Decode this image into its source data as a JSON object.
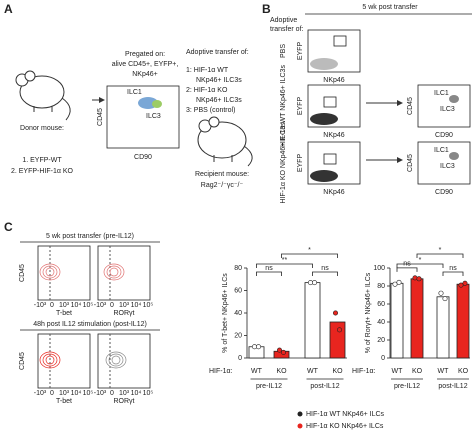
{
  "panel_a": {
    "letter": "A",
    "donor_label": "Donor mouse:",
    "donor_items": [
      "1. EYFP-WT",
      "2. EYFP-HIF-1α KO"
    ],
    "gate_text": [
      "Pregated on:",
      "alive CD45+, EYFP+,",
      "NKp46+"
    ],
    "plot": {
      "y_label": "CD45",
      "x_label": "CD90",
      "gates": [
        "ILC1",
        "ILC3"
      ]
    },
    "transfer_title": "Adoptive transfer of:",
    "transfer_items": [
      "1:  HIF-1α WT",
      "NKp46+ ILC3s",
      "2:  HIF-1α KO",
      "NKp46+ ILC3s",
      "3:  PBS (control)"
    ],
    "recipient": [
      "Recipient mouse:",
      "Rag2⁻/⁻γc⁻/⁻"
    ]
  },
  "panel_b": {
    "letter": "B",
    "header": "5 wk  post transfer",
    "side_title": [
      "Adoptive",
      "transfer of:"
    ],
    "rows": [
      "PBS",
      "HIF-1α WT NKp46+ ILC3s",
      "HIF-1α KO NKp46+ ILC3s"
    ],
    "left_plot": {
      "y_label": "EYFP",
      "x_label": "NKp46"
    },
    "right_plot": {
      "y_label": "CD45",
      "x_label": "CD90",
      "gates": [
        "ILC1",
        "ILC3"
      ]
    }
  },
  "panel_c": {
    "letter": "C",
    "flow": {
      "headers": [
        "5 wk  post transfer (pre-IL12)",
        "48h post IL12 stimulation (post-IL12)"
      ],
      "y_label": "CD45",
      "x_labels": [
        "T-bet",
        "RORγt"
      ],
      "x_ticks": [
        "-10³",
        "0",
        "10³",
        "10⁴",
        "10⁵"
      ]
    },
    "charts": [
      {
        "type": "bar",
        "y_label": "% of T-bet+ NKp46+ ILCs",
        "row_label": "HIF-1α:",
        "categories": [
          "WT",
          "KO",
          "WT",
          "KO"
        ],
        "groups": [
          "pre-IL12",
          "post-IL12"
        ],
        "values": [
          10,
          6,
          67,
          32
        ],
        "points": [
          [
            10,
            10
          ],
          [
            7,
            5
          ],
          [
            67,
            67
          ],
          [
            40,
            25
          ]
        ],
        "colors": [
          "#ffffff",
          "#e8251f",
          "#ffffff",
          "#e8251f"
        ],
        "significance": [
          "ns",
          "ns",
          "**",
          "*"
        ],
        "ylim": [
          0,
          80
        ],
        "yticks": [
          0,
          20,
          40,
          60,
          80
        ]
      },
      {
        "type": "bar",
        "y_label": "% of Rorγt+ NKp46+ ILCs",
        "row_label": "HIF-1α:",
        "categories": [
          "WT",
          "KO",
          "WT",
          "KO"
        ],
        "groups": [
          "pre-IL12",
          "post-IL12"
        ],
        "values": [
          83,
          88,
          68,
          82
        ],
        "points": [
          [
            82,
            84
          ],
          [
            89,
            88
          ],
          [
            72,
            66
          ],
          [
            81,
            83
          ]
        ],
        "colors": [
          "#ffffff",
          "#e8251f",
          "#ffffff",
          "#e8251f"
        ],
        "significance": [
          "ns",
          "ns",
          "*",
          "*"
        ],
        "ylim": [
          0,
          100
        ],
        "yticks": [
          0,
          20,
          40,
          60,
          80,
          100
        ]
      }
    ],
    "legend": [
      {
        "label": "HIF-1α WT NKp46+ ILCs",
        "color": "#222222"
      },
      {
        "label": "HIF-1α KO NKp46+ ILCs",
        "color": "#e8251f"
      }
    ]
  }
}
